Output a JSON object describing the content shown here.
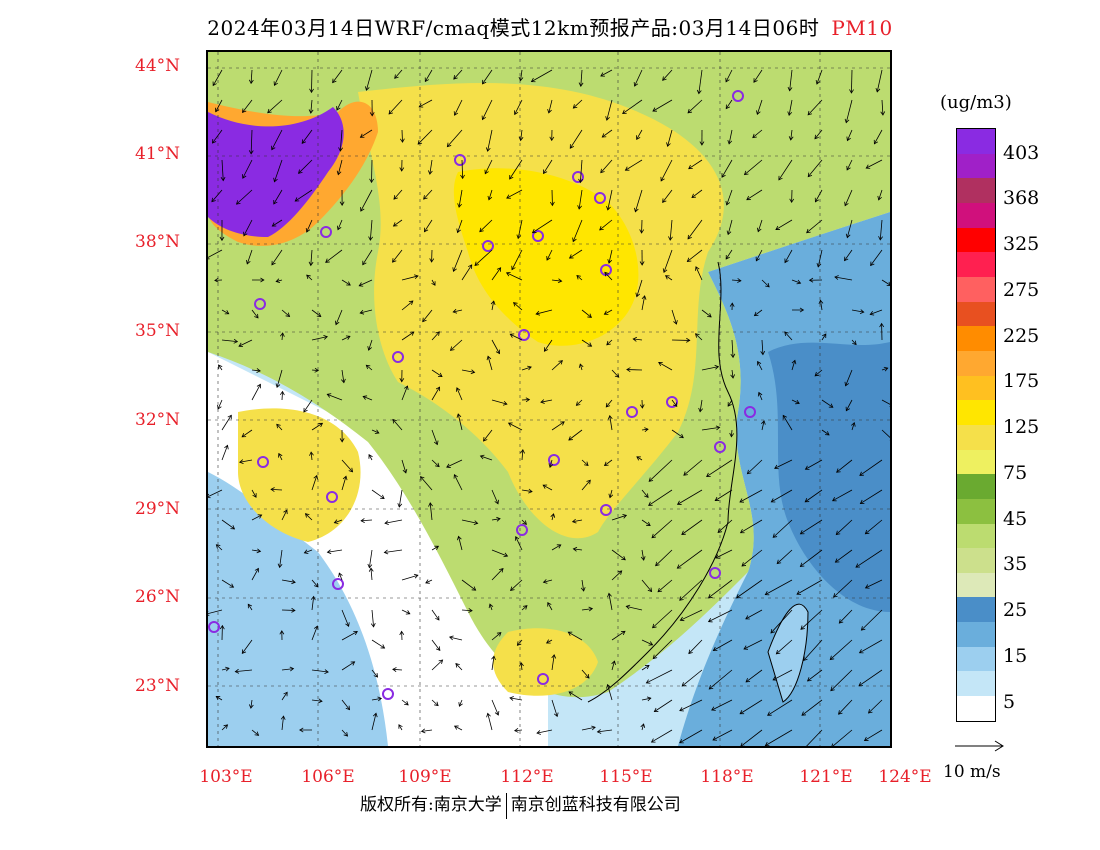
{
  "title": {
    "main": "2024年03月14日WRF/cmaq模式12km预报产品:03月14日06时",
    "pollutant": "PM10"
  },
  "lat_labels": [
    "44°N",
    "41°N",
    "38°N",
    "35°N",
    "32°N",
    "29°N",
    "26°N",
    "23°N"
  ],
  "lon_labels": [
    "103°E",
    "106°E",
    "109°E",
    "112°E",
    "115°E",
    "118°E",
    "121°E",
    "124°E"
  ],
  "legend": {
    "unit": "(ug/m3)",
    "labels": [
      "403",
      "368",
      "325",
      "275",
      "225",
      "175",
      "125",
      "75",
      "45",
      "35",
      "25",
      "15",
      "5"
    ],
    "colors": [
      "#8a2be2",
      "#a020c8",
      "#b03060",
      "#d0107c",
      "#ff0000",
      "#ff2050",
      "#ff6060",
      "#e85020",
      "#ff8c00",
      "#ffa830",
      "#ffc020",
      "#ffe600",
      "#f5e04a",
      "#eef060",
      "#6aaa30",
      "#8cc040",
      "#bcdc70",
      "#cce08c",
      "#dde9b8",
      "#4a8ec8",
      "#6aaedc",
      "#9ccfef",
      "#c4e6f7",
      "#ffffff"
    ]
  },
  "wind_reference": {
    "label": "10 m/s"
  },
  "footer": {
    "copyright": "版权所有:南京大学",
    "company": "南京创蓝科技有限公司"
  }
}
